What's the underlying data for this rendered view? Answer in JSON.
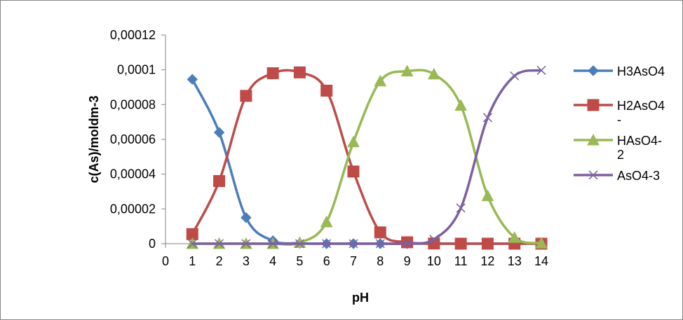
{
  "chart_data": {
    "type": "line",
    "xlabel": "pH",
    "ylabel": "c(As)/moldm-3",
    "xlim": [
      0,
      14
    ],
    "ylim": [
      0,
      0.00012
    ],
    "x_ticks": [
      "0",
      "1",
      "2",
      "3",
      "4",
      "5",
      "6",
      "7",
      "8",
      "9",
      "10",
      "11",
      "12",
      "13",
      "14"
    ],
    "y_ticks": [
      "0",
      "0,00002",
      "0,00004",
      "0,00006",
      "0,00008",
      "0,0001",
      "0,00012"
    ],
    "grid": false,
    "legend_position": "right",
    "x": [
      1,
      2,
      3,
      4,
      5,
      6,
      7,
      8,
      9,
      10,
      11,
      12,
      13,
      14
    ],
    "series": [
      {
        "name": "H3AsO4",
        "color": "#4a7ebb",
        "marker": "diamond",
        "values": [
          9.45e-05,
          6.4e-05,
          1.5e-05,
          1.7e-06,
          2e-07,
          0,
          0,
          0,
          0,
          0,
          0,
          0,
          0,
          0
        ]
      },
      {
        "name": "H2AsO4-",
        "color": "#be4b48",
        "marker": "square",
        "values": [
          5.5e-06,
          3.6e-05,
          8.5e-05,
          9.8e-05,
          9.85e-05,
          8.8e-05,
          4.15e-05,
          6.5e-06,
          8e-07,
          1e-07,
          0,
          0,
          0,
          0
        ]
      },
      {
        "name": "HAsO4-2",
        "color": "#98b954",
        "marker": "triangle",
        "values": [
          0,
          0,
          0,
          0,
          6e-07,
          1.25e-05,
          5.85e-05,
          9.35e-05,
          9.92e-05,
          9.75e-05,
          7.95e-05,
          2.75e-05,
          3.5e-06,
          3e-07
        ]
      },
      {
        "name": "AsO4-3",
        "color": "#7d60a0",
        "marker": "x",
        "values": [
          0,
          0,
          0,
          0,
          0,
          0,
          0,
          0,
          1e-07,
          2.5e-06,
          2.05e-05,
          7.25e-05,
          9.65e-05,
          9.97e-05
        ]
      }
    ]
  }
}
